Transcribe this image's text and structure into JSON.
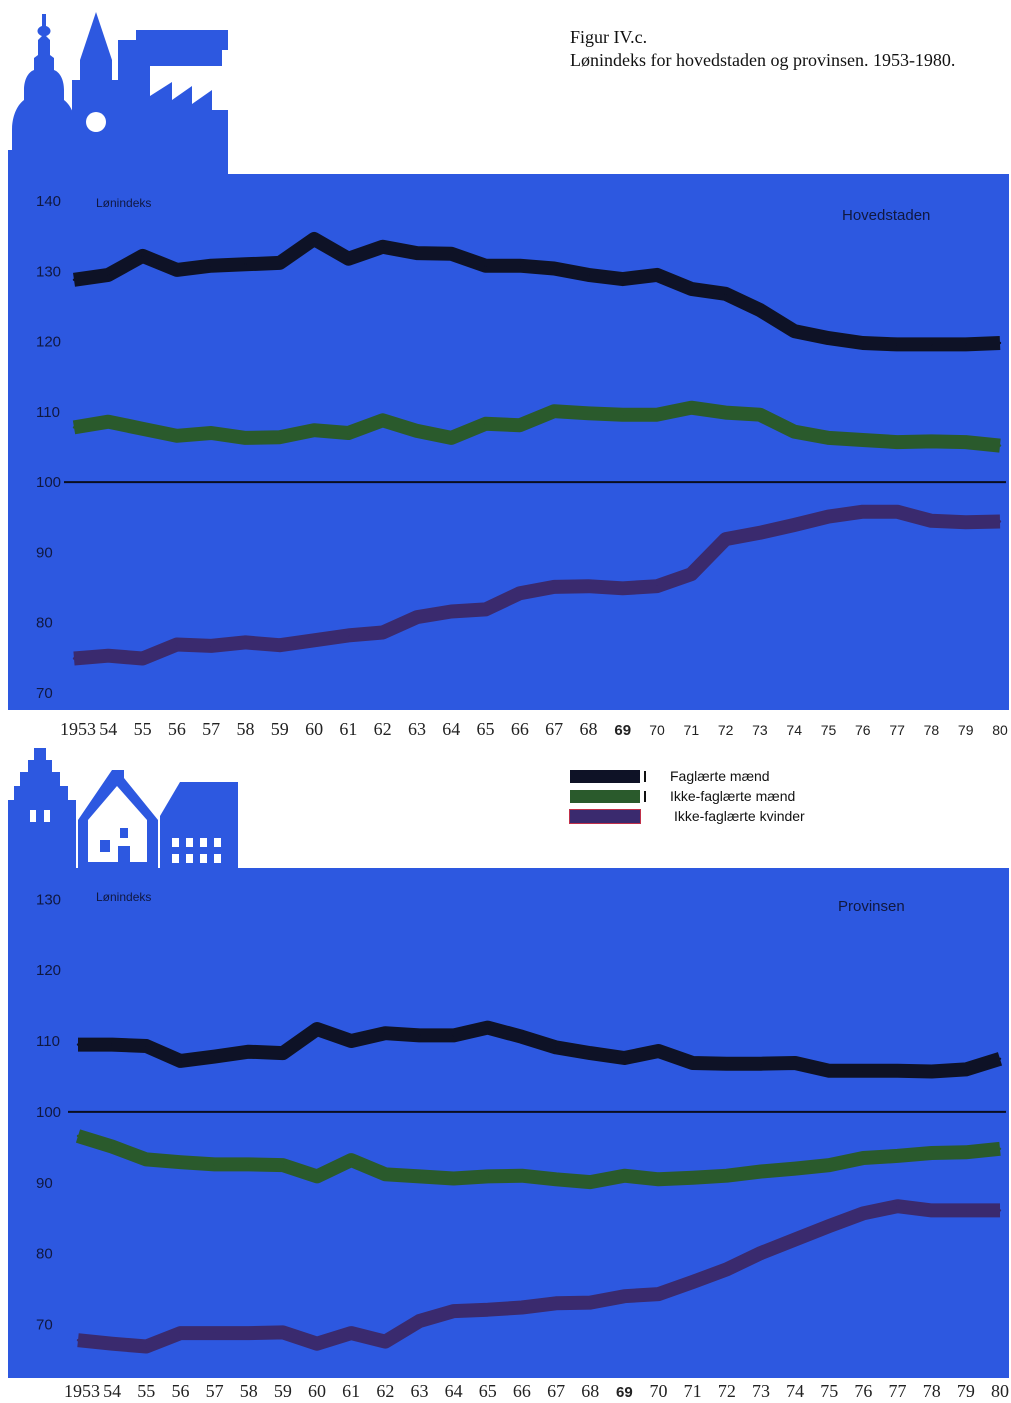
{
  "caption": {
    "figure": "Figur IV.c.",
    "title": "Lønindeks for hovedstaden og provinsen. 1953-1980."
  },
  "colors": {
    "panel": "#2d58e0",
    "faglaerte_maend": "#0e1226",
    "ikke_faglaerte_maend": "#2a5a2c",
    "ikke_faglaerte_kvinder": "#3a2a6e"
  },
  "legend": [
    {
      "label": "Faglærte mænd",
      "color": "#0e1226"
    },
    {
      "label": "Ikke-faglærte mænd",
      "color": "#2a5a2c"
    },
    {
      "label": "Ikke-faglærte kvinder",
      "color": "#3a2a6e"
    }
  ],
  "chart_data": [
    {
      "type": "line",
      "region_label": "Hovedstaden",
      "ylabel": "Lønindeks",
      "ylim": [
        69,
        143
      ],
      "yticks": [
        140,
        130,
        120,
        110,
        100,
        90,
        80,
        70
      ],
      "reference_line": 100,
      "x": [
        1953,
        1954,
        1955,
        1956,
        1957,
        1958,
        1959,
        1960,
        1961,
        1962,
        1963,
        1964,
        1965,
        1966,
        1967,
        1968,
        1969,
        1970,
        1971,
        1972,
        1973,
        1974,
        1975,
        1976,
        1977,
        1978,
        1979,
        1980
      ],
      "x_tick_labels": [
        "1953",
        "54",
        "55",
        "56",
        "57",
        "58",
        "59",
        "60",
        "61",
        "62",
        "63",
        "64",
        "65",
        "66",
        "67",
        "68",
        "69",
        "70",
        "71",
        "72",
        "73",
        "74",
        "75",
        "76",
        "77",
        "78",
        "79",
        "80"
      ],
      "series": [
        {
          "name": "Faglærte mænd",
          "values": [
            128.8,
            129.5,
            132.2,
            130.2,
            130.8,
            131.0,
            131.2,
            134.6,
            131.8,
            133.5,
            132.6,
            132.5,
            130.8,
            130.8,
            130.4,
            129.5,
            128.9,
            129.5,
            127.5,
            126.8,
            124.5,
            121.5,
            120.5,
            119.8,
            119.6,
            119.6,
            119.6,
            119.8
          ]
        },
        {
          "name": "Ikke-faglærte mænd",
          "values": [
            107.8,
            108.6,
            107.6,
            106.6,
            107.0,
            106.3,
            106.4,
            107.4,
            107.0,
            108.8,
            107.3,
            106.3,
            108.3,
            108.1,
            110.1,
            109.8,
            109.6,
            109.6,
            110.6,
            109.9,
            109.6,
            107.2,
            106.3,
            106.0,
            105.7,
            105.8,
            105.7,
            105.2
          ]
        },
        {
          "name": "Ikke-faglærte kvinder",
          "values": [
            74.9,
            75.3,
            74.9,
            76.9,
            76.7,
            77.2,
            76.8,
            77.5,
            78.2,
            78.6,
            80.8,
            81.6,
            81.9,
            84.2,
            85.1,
            85.2,
            84.9,
            85.2,
            86.9,
            91.9,
            92.8,
            93.9,
            95.1,
            95.8,
            95.8,
            94.5,
            94.3,
            94.4
          ]
        }
      ]
    },
    {
      "type": "line",
      "region_label": "Provinsen",
      "ylabel": "Lønindeks",
      "ylim": [
        65,
        133
      ],
      "yticks": [
        130,
        120,
        110,
        100,
        90,
        80,
        70
      ],
      "reference_line": 100,
      "x": [
        1953,
        1954,
        1955,
        1956,
        1957,
        1958,
        1959,
        1960,
        1961,
        1962,
        1963,
        1964,
        1965,
        1966,
        1967,
        1968,
        1969,
        1970,
        1971,
        1972,
        1973,
        1974,
        1975,
        1976,
        1977,
        1978,
        1979,
        1980
      ],
      "x_tick_labels": [
        "1953",
        "54",
        "55",
        "56",
        "57",
        "58",
        "59",
        "60",
        "61",
        "62",
        "63",
        "64",
        "65",
        "66",
        "67",
        "68",
        "69",
        "70",
        "71",
        "72",
        "73",
        "74",
        "75",
        "76",
        "77",
        "78",
        "79",
        "80"
      ],
      "series": [
        {
          "name": "Faglærte mænd",
          "values": [
            109.5,
            109.5,
            109.3,
            107.2,
            107.8,
            108.5,
            108.3,
            111.7,
            110.0,
            111.1,
            110.8,
            110.8,
            111.9,
            110.6,
            109.1,
            108.3,
            107.6,
            108.6,
            106.9,
            106.8,
            106.8,
            106.9,
            105.8,
            105.8,
            105.8,
            105.7,
            106.0,
            107.5
          ]
        },
        {
          "name": "Ikke-faglærte mænd",
          "values": [
            96.6,
            95.1,
            93.3,
            92.9,
            92.6,
            92.6,
            92.5,
            90.9,
            93.2,
            91.2,
            90.9,
            90.6,
            90.9,
            91.0,
            90.5,
            90.1,
            91.0,
            90.5,
            90.7,
            91.0,
            91.6,
            92.0,
            92.5,
            93.5,
            93.8,
            94.2,
            94.3,
            94.8
          ]
        },
        {
          "name": "Ikke-faglærte kvinder",
          "values": [
            67.8,
            67.3,
            66.9,
            68.8,
            68.8,
            68.8,
            68.9,
            67.3,
            68.8,
            67.6,
            70.5,
            71.9,
            72.1,
            72.4,
            73.0,
            73.1,
            74.0,
            74.3,
            76.0,
            77.8,
            80.1,
            82.0,
            83.9,
            85.7,
            86.7,
            86.1,
            86.1,
            86.1
          ]
        }
      ]
    }
  ]
}
